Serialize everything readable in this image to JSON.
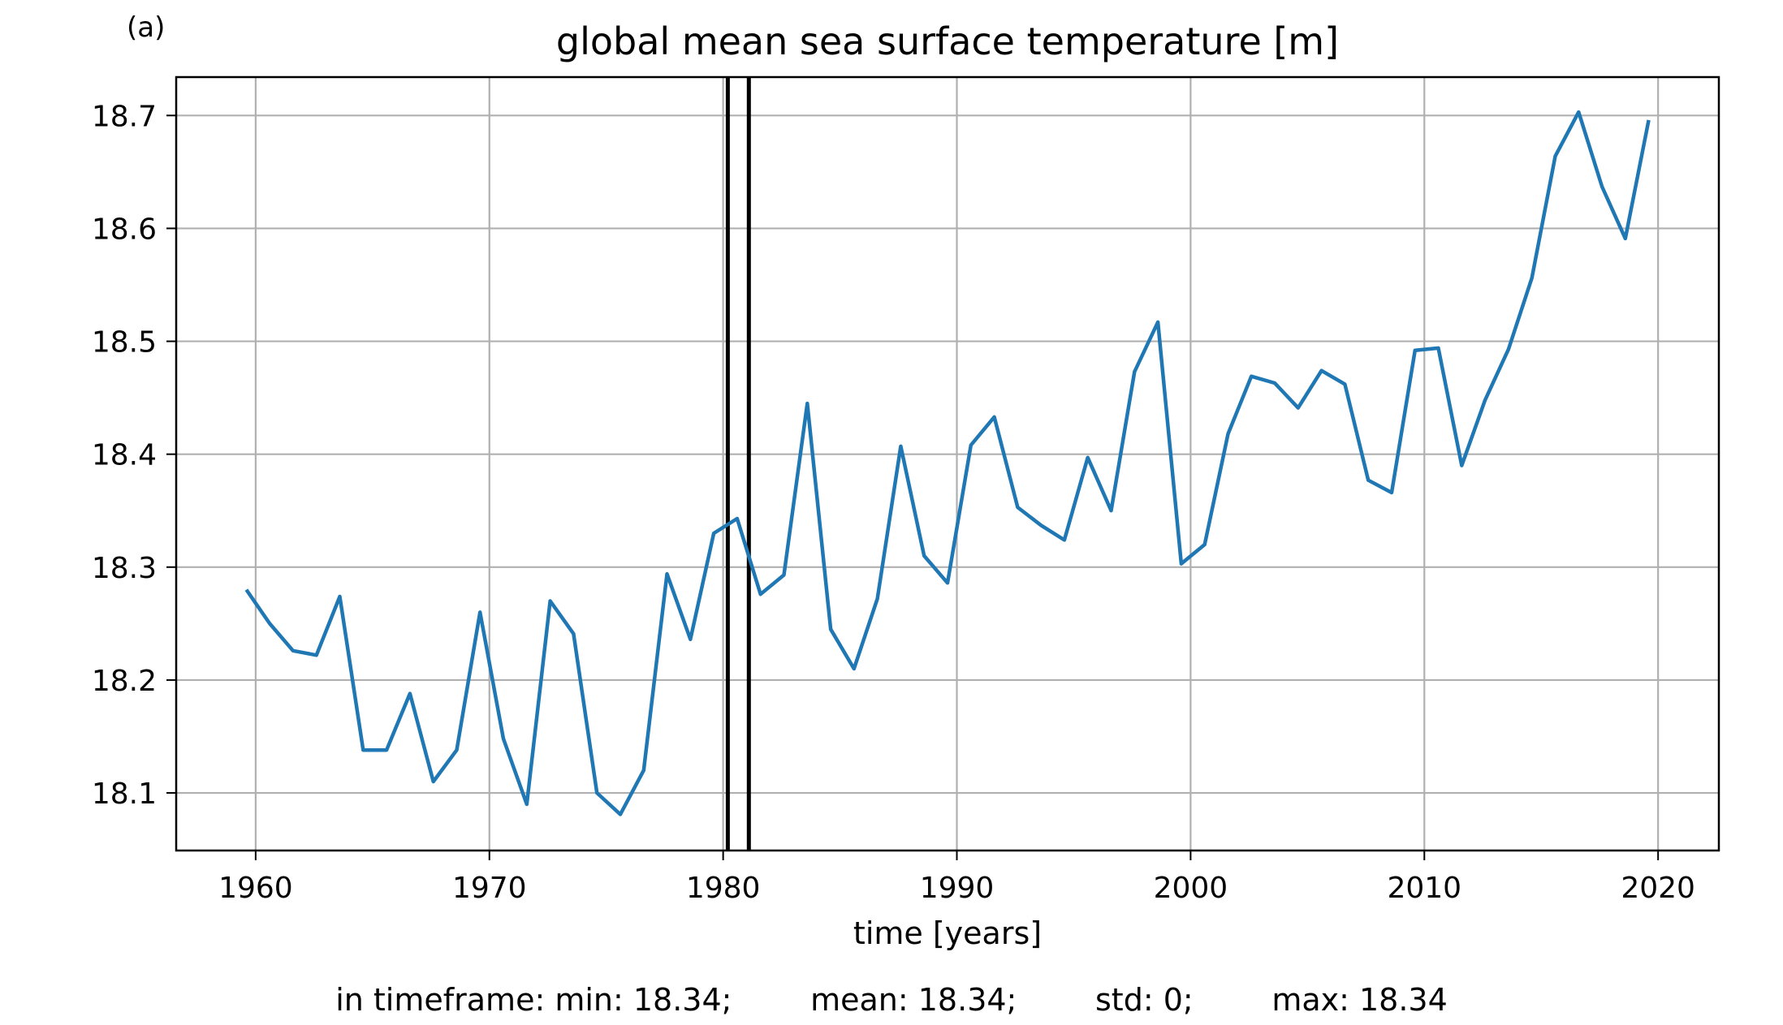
{
  "panel_label": "(a)",
  "chart_data": {
    "type": "line",
    "title": "global mean sea surface temperature [m]",
    "xlabel": "time [years]",
    "ylabel": "",
    "xlim": [
      1956.6,
      2022.6
    ],
    "ylim": [
      18.049,
      18.734
    ],
    "xticks": [
      1960,
      1970,
      1980,
      1990,
      2000,
      2010,
      2020
    ],
    "yticks": [
      18.1,
      18.2,
      18.3,
      18.4,
      18.5,
      18.6,
      18.7
    ],
    "ytick_labels": [
      "18.1",
      "18.2",
      "18.3",
      "18.4",
      "18.5",
      "18.6",
      "18.7"
    ],
    "grid": true,
    "line_color": "#1f77b4",
    "vlines": [
      1980.2,
      1981.1
    ],
    "vline_color": "#000000",
    "series": [
      {
        "x": [
          1959.6,
          1960.6,
          1961.6,
          1962.6,
          1963.6,
          1964.6,
          1965.6,
          1966.6,
          1967.6,
          1968.6,
          1969.6,
          1970.6,
          1971.6,
          1972.6,
          1973.6,
          1974.6,
          1975.6,
          1976.6,
          1977.6,
          1978.6,
          1979.6,
          1980.6,
          1981.6,
          1982.6,
          1983.6,
          1984.6,
          1985.6,
          1986.6,
          1987.6,
          1988.6,
          1989.6,
          1990.6,
          1991.6,
          1992.6,
          1993.6,
          1994.6,
          1995.6,
          1996.6,
          1997.6,
          1998.6,
          1999.6,
          2000.6,
          2001.6,
          2002.6,
          2003.6,
          2004.6,
          2005.6,
          2006.6,
          2007.6,
          2008.6,
          2009.6,
          2010.6,
          2011.6,
          2012.6,
          2013.6,
          2014.6,
          2015.6,
          2016.6,
          2017.6,
          2018.6,
          2019.6
        ],
        "y": [
          18.28,
          18.25,
          18.226,
          18.222,
          18.274,
          18.138,
          18.138,
          18.188,
          18.11,
          18.138,
          18.26,
          18.148,
          18.09,
          18.27,
          18.241,
          18.1,
          18.081,
          18.12,
          18.294,
          18.236,
          18.33,
          18.343,
          18.276,
          18.293,
          18.445,
          18.245,
          18.21,
          18.272,
          18.407,
          18.31,
          18.286,
          18.408,
          18.433,
          18.353,
          18.337,
          18.324,
          18.397,
          18.35,
          18.473,
          18.517,
          18.303,
          18.32,
          18.418,
          18.469,
          18.463,
          18.441,
          18.474,
          18.462,
          18.377,
          18.366,
          18.492,
          18.494,
          18.39,
          18.448,
          18.493,
          18.556,
          18.664,
          18.703,
          18.637,
          18.591,
          18.696
        ]
      }
    ]
  },
  "stats": {
    "prefix": "in timeframe: min: 18.34;",
    "mean": "mean: 18.34;",
    "std": "std: 0;",
    "max": "max: 18.34"
  }
}
